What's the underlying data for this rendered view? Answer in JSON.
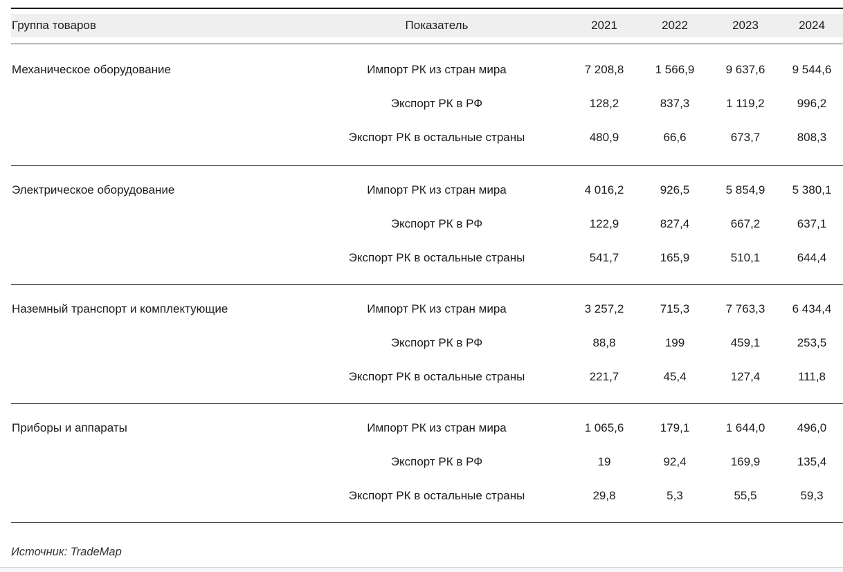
{
  "chart_data": {
    "type": "table",
    "columns": [
      "Группа товаров",
      "Показатель",
      "2021",
      "2022",
      "2023",
      "2024"
    ],
    "groups": [
      {
        "name": "Механическое оборудование",
        "rows": [
          {
            "indicator": "Импорт РК из стран мира",
            "values": [
              "7 208,8",
              "1 566,9",
              "9 637,6",
              "9 544,6"
            ]
          },
          {
            "indicator": "Экспорт РК в РФ",
            "values": [
              "128,2",
              "837,3",
              "1 119,2",
              "996,2"
            ]
          },
          {
            "indicator": "Экспорт РК в остальные страны",
            "values": [
              "480,9",
              "66,6",
              "673,7",
              "808,3"
            ]
          }
        ]
      },
      {
        "name": "Электрическое оборудование",
        "rows": [
          {
            "indicator": "Импорт РК из стран мира",
            "values": [
              "4 016,2",
              "926,5",
              "5 854,9",
              "5 380,1"
            ]
          },
          {
            "indicator": "Экспорт РК в РФ",
            "values": [
              "122,9",
              "827,4",
              "667,2",
              "637,1"
            ]
          },
          {
            "indicator": "Экспорт РК в остальные страны",
            "values": [
              "541,7",
              "165,9",
              "510,1",
              "644,4"
            ]
          }
        ]
      },
      {
        "name": "Наземный транспорт и комплектующие",
        "rows": [
          {
            "indicator": "Импорт РК из стран мира",
            "values": [
              "3 257,2",
              "715,3",
              "7 763,3",
              "6 434,4"
            ]
          },
          {
            "indicator": "Экспорт РК в РФ",
            "values": [
              "88,8",
              "199",
              "459,1",
              "253,5"
            ]
          },
          {
            "indicator": "Экспорт РК в остальные страны",
            "values": [
              "221,7",
              "45,4",
              "127,4",
              "111,8"
            ]
          }
        ]
      },
      {
        "name": "Приборы и аппараты",
        "rows": [
          {
            "indicator": "Импорт РК из стран мира",
            "values": [
              "1 065,6",
              "179,1",
              "1 644,0",
              "496,0"
            ]
          },
          {
            "indicator": "Экспорт РК в РФ",
            "values": [
              "19",
              "92,4",
              "169,9",
              "135,4"
            ]
          },
          {
            "indicator": "Экспорт РК в остальные страны",
            "values": [
              "29,8",
              "5,3",
              "55,5",
              "59,3"
            ]
          }
        ]
      }
    ],
    "source": "Источник: TradeMap",
    "colors": {
      "header_background": "#efefef",
      "rule_dark": "#181818",
      "rule_gray": "#4a4a4a",
      "text": "#1c1c1c",
      "bottom_strip": "#f4f6f9"
    }
  }
}
